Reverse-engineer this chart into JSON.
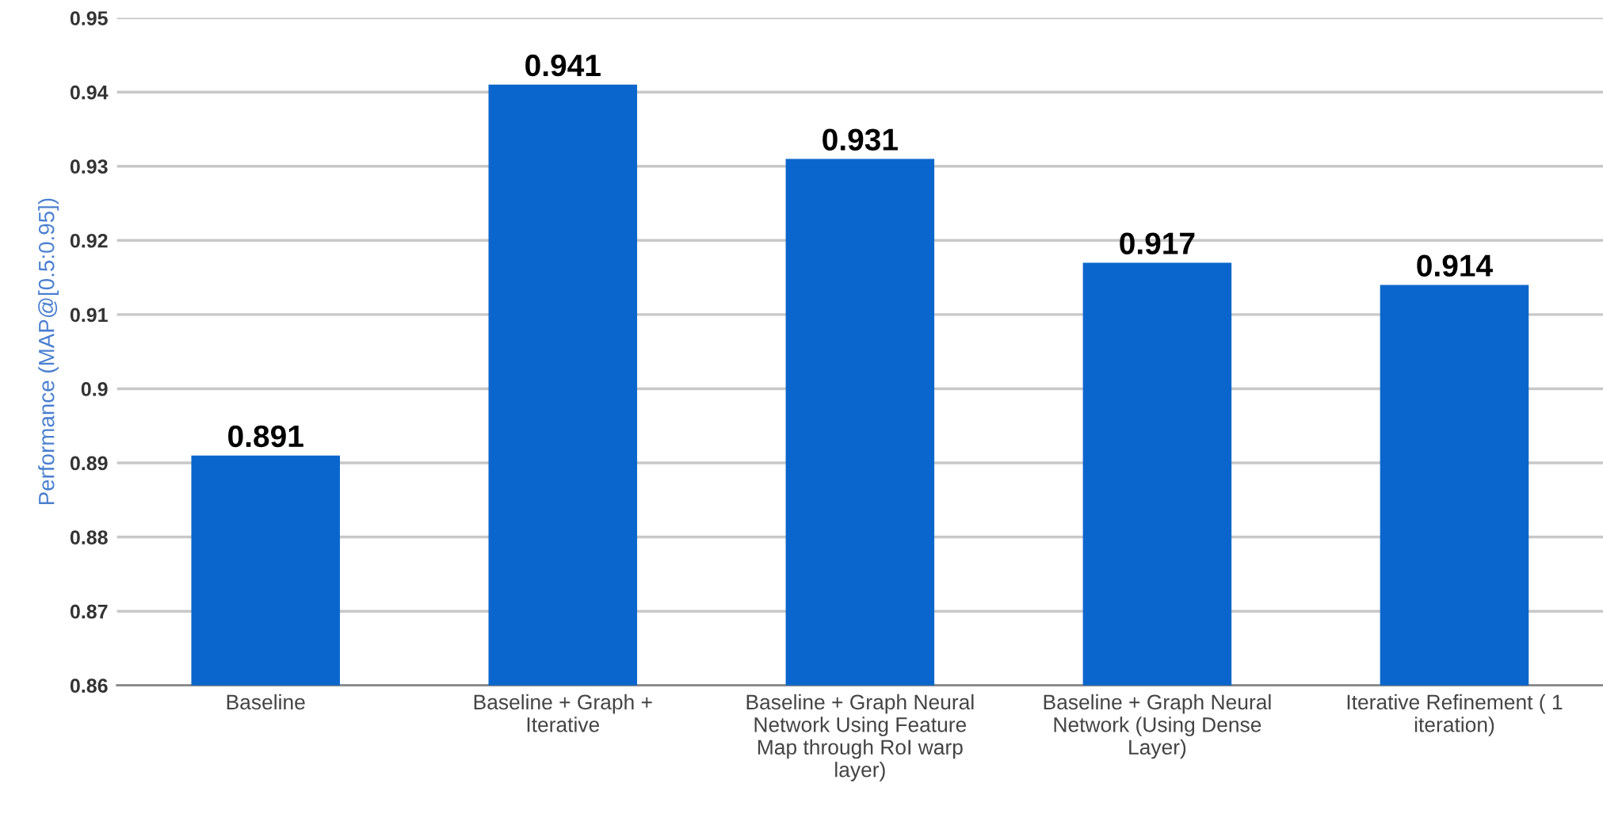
{
  "chart_data": {
    "type": "bar",
    "ylabel": "Performance (MAP@[0.5:0.95])",
    "categories": [
      "Baseline",
      "Baseline + Graph +\nIterative",
      "Baseline + Graph Neural\nNetwork Using Feature\nMap through RoI warp\nlayer)",
      "Baseline + Graph Neural\nNetwork (Using Dense\nLayer)",
      "Iterative Refinement ( 1\niteration)"
    ],
    "values": [
      0.891,
      0.941,
      0.931,
      0.917,
      0.914
    ],
    "color": "#0a66cc",
    "ylim": [
      0.86,
      0.95
    ],
    "yticks": [
      0.86,
      0.87,
      0.88,
      0.89,
      0.9,
      0.91,
      0.92,
      0.93,
      0.94,
      0.95
    ],
    "grid": "y",
    "data_labels": true
  }
}
